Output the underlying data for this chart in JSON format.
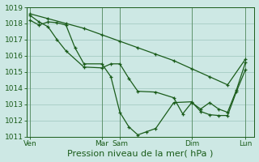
{
  "background_color": "#cde8e4",
  "grid_color": "#aacfc8",
  "line_color": "#1a5c1a",
  "xlabel": "Pression niveau de la mer( hPa )",
  "xlabel_fontsize": 8,
  "ylim": [
    1011,
    1019
  ],
  "yticks": [
    1011,
    1012,
    1013,
    1014,
    1015,
    1016,
    1017,
    1018,
    1019
  ],
  "xtick_labels": [
    "Ven",
    "Mar",
    "Sam",
    "Dim",
    "Lun"
  ],
  "xtick_positions": [
    0,
    40,
    50,
    90,
    120
  ],
  "xlim": [
    -2,
    125
  ],
  "line1_x": [
    0,
    10,
    20,
    30,
    40,
    50,
    60,
    70,
    80,
    90,
    100,
    110,
    120
  ],
  "line1_y": [
    1018.6,
    1018.3,
    1018.0,
    1017.7,
    1017.3,
    1016.9,
    1016.5,
    1016.1,
    1015.7,
    1015.2,
    1014.7,
    1014.2,
    1015.8
  ],
  "line2_x": [
    0,
    5,
    10,
    15,
    20,
    30,
    40,
    45,
    50,
    55,
    60,
    70,
    80,
    85,
    90,
    95,
    100,
    105,
    110,
    115,
    120
  ],
  "line2_y": [
    1018.5,
    1018.1,
    1017.8,
    1017.0,
    1016.3,
    1015.3,
    1015.25,
    1015.5,
    1015.5,
    1014.6,
    1013.8,
    1013.75,
    1013.4,
    1012.4,
    1013.1,
    1012.7,
    1013.1,
    1012.7,
    1012.5,
    1013.9,
    1015.6
  ],
  "line3_x": [
    0,
    5,
    10,
    15,
    20,
    25,
    30,
    40,
    45,
    50,
    55,
    60,
    65,
    70,
    80,
    90,
    95,
    100,
    105,
    110,
    115,
    120
  ],
  "line3_y": [
    1018.2,
    1017.9,
    1018.1,
    1018.05,
    1017.9,
    1016.5,
    1015.5,
    1015.5,
    1014.7,
    1012.5,
    1011.6,
    1011.1,
    1011.3,
    1011.5,
    1013.1,
    1013.15,
    1012.55,
    1012.35,
    1012.3,
    1012.3,
    1013.8,
    1015.15
  ]
}
